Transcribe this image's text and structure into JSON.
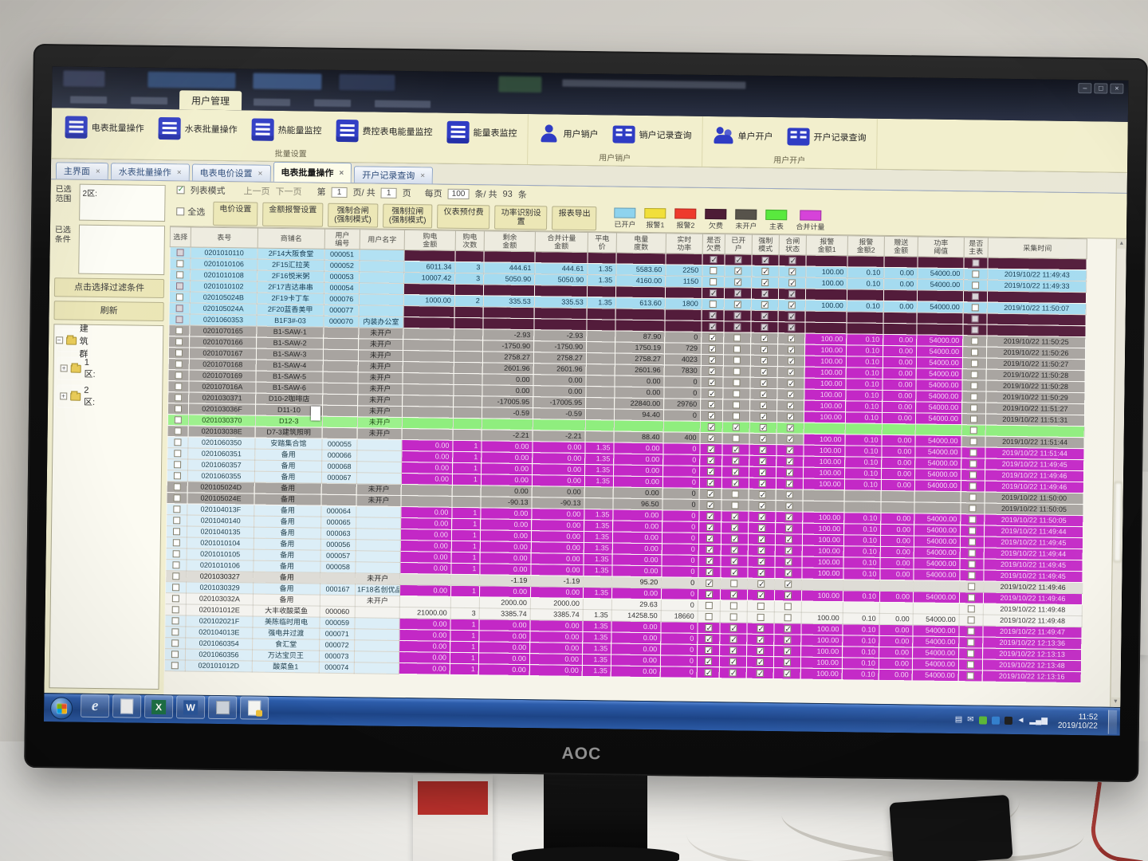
{
  "monitor": {
    "brand": "AOC"
  },
  "chrome": {
    "active_menu": "用户管理",
    "controls": [
      "–",
      "□",
      "×"
    ]
  },
  "ribbon": {
    "groups": [
      {
        "label": "批量设置",
        "buttons": [
          {
            "label": "电表批量操作",
            "icon": "meter"
          },
          {
            "label": "水表批量操作",
            "icon": "meter"
          },
          {
            "label": "热能量监控",
            "icon": "meter"
          },
          {
            "label": "费控表电能量监控",
            "icon": "meter"
          },
          {
            "label": "能量表监控",
            "icon": "meter"
          }
        ]
      },
      {
        "label": "用户销户",
        "buttons": [
          {
            "label": "用户销户",
            "icon": "person"
          },
          {
            "label": "销户记录查询",
            "icon": "card"
          }
        ]
      },
      {
        "label": "用户开户",
        "buttons": [
          {
            "label": "单户开户",
            "icon": "persons"
          },
          {
            "label": "开户记录查询",
            "icon": "card"
          }
        ]
      }
    ]
  },
  "doc_tabs": [
    {
      "label": "主界面",
      "active": false
    },
    {
      "label": "水表批量操作",
      "active": false
    },
    {
      "label": "电表电价设置",
      "active": false
    },
    {
      "label": "电表批量操作",
      "active": true
    },
    {
      "label": "开户记录查询",
      "active": false
    }
  ],
  "pagination": {
    "list_mode": "列表模式",
    "prev": "上一页",
    "next": "下一页",
    "seg1": "第",
    "page": "1",
    "seg2": "页/ 共",
    "pages": "1",
    "seg3": "页",
    "seg4": "每页",
    "per_page": "100",
    "seg5": "条/ 共",
    "total": "93",
    "seg6": "条"
  },
  "toolbar": {
    "select_all": "全选",
    "buttons": [
      "电价设置",
      "金额报警设置",
      "强制合闸\n(强制模式)",
      "强制拉闸\n(强制模式)",
      "仪表预付费",
      "功率识别设\n置",
      "报表导出"
    ]
  },
  "legend": [
    {
      "label": "已开户",
      "color": "#8ed3ee"
    },
    {
      "label": "报警1",
      "color": "#f1df3a"
    },
    {
      "label": "报警2",
      "color": "#ee3a2c"
    },
    {
      "label": "欠费",
      "color": "#4d1c36"
    },
    {
      "label": "未开户",
      "color": "#57534b"
    },
    {
      "label": "主表",
      "color": "#59e93e"
    },
    {
      "label": "合并计量",
      "color": "#d643d9"
    }
  ],
  "sidebar": {
    "range_label": "已选范围",
    "range_value": "2区:",
    "cond_label": "已选条件",
    "cond_value": "",
    "filter_button": "点击选择过滤条件",
    "refresh_button": "刷新",
    "tree": {
      "root": "建筑群",
      "children": [
        "1区:",
        "2区:"
      ]
    }
  },
  "table": {
    "headers": [
      "选择",
      "表号",
      "商铺名",
      "用户\n编号",
      "用户名字",
      "购电\n金额",
      "购电\n次数",
      "剩余\n金额",
      "合并计量\n金额",
      "平电\n价",
      "电量\n度数",
      "实时\n功率",
      "是否\n欠费",
      "已开\n户",
      "强制\n模式",
      "合闸\n状态",
      "报警\n金额1",
      "报警\n金额2",
      "赠送\n金额",
      "功率\n阈值",
      "是否\n主表",
      "采集时间"
    ],
    "check_patterns": {
      "blue": [
        0,
        1,
        1,
        1
      ],
      "dark": [
        1,
        1,
        1,
        1
      ],
      "gray": [
        1,
        0,
        1,
        1
      ],
      "magenta": [
        1,
        1,
        1,
        1
      ],
      "green": [
        1,
        1,
        1,
        1
      ],
      "white": [
        0,
        0,
        0,
        0
      ],
      "sel": [
        1,
        0,
        1,
        1
      ]
    },
    "magenta_defaults": {
      "v": [
        "0.00",
        "1",
        "0.00",
        "0.00",
        "1.35",
        "0.00",
        "0"
      ],
      "a": [
        "100.00",
        "0.10",
        "0.00",
        "54000.00"
      ]
    },
    "rows": [
      {
        "m": "0201010110",
        "s": "2F14大阪食堂",
        "u": "000051",
        "n": "",
        "t": "dark"
      },
      {
        "m": "0201010106",
        "s": "2F15汇拉芙",
        "u": "000052",
        "n": "",
        "t": "blue",
        "v": [
          "6011.34",
          "3",
          "444.61",
          "444.61",
          "1.35",
          "5583.60",
          "2250"
        ],
        "a": [
          "100.00",
          "0.10",
          "0.00",
          "54000.00"
        ],
        "time": "2019/10/22 11:49:43"
      },
      {
        "m": "0201010108",
        "s": "2F16悦米粥",
        "u": "000053",
        "n": "",
        "t": "blue",
        "v": [
          "10007.42",
          "3",
          "5050.90",
          "5050.90",
          "1.35",
          "4160.00",
          "1150"
        ],
        "a": [
          "100.00",
          "0.10",
          "0.00",
          "54000.00"
        ],
        "time": "2019/10/22 11:49:33"
      },
      {
        "m": "0201010102",
        "s": "2F17吉达串串",
        "u": "000054",
        "n": "",
        "t": "dark"
      },
      {
        "m": "020105024B",
        "s": "2F19卡丁车",
        "u": "000076",
        "n": "",
        "t": "blue",
        "v": [
          "1000.00",
          "2",
          "335.53",
          "335.53",
          "1.35",
          "613.60",
          "1800"
        ],
        "a": [
          "100.00",
          "0.10",
          "0.00",
          "54000.00"
        ],
        "time": "2019/10/22 11:50:07"
      },
      {
        "m": "020105024A",
        "s": "2F20蓝香美甲",
        "u": "000077",
        "n": "",
        "t": "dark"
      },
      {
        "m": "0201060353",
        "s": "B1F3#-03",
        "u": "000070",
        "n": "内装办公室",
        "t": "dark"
      },
      {
        "m": "0201070165",
        "s": "B1-SAW-1",
        "u": "",
        "n": "未开户",
        "t": "gray",
        "am": true,
        "v": [
          "",
          "",
          "-2.93",
          "-2.93",
          "",
          "87.90",
          "0"
        ],
        "time": "2019/10/22 11:50:25"
      },
      {
        "m": "0201070166",
        "s": "B1-SAW-2",
        "u": "",
        "n": "未开户",
        "t": "gray",
        "am": true,
        "v": [
          "",
          "",
          "-1750.90",
          "-1750.90",
          "",
          "1750.19",
          "729"
        ],
        "time": "2019/10/22 11:50:26"
      },
      {
        "m": "0201070167",
        "s": "B1-SAW-3",
        "u": "",
        "n": "未开户",
        "t": "gray",
        "am": true,
        "v": [
          "",
          "",
          "2758.27",
          "2758.27",
          "",
          "2758.27",
          "4023"
        ],
        "time": "2019/10/22 11:50:27"
      },
      {
        "m": "0201070168",
        "s": "B1-SAW-4",
        "u": "",
        "n": "未开户",
        "t": "gray",
        "am": true,
        "v": [
          "",
          "",
          "2601.96",
          "2601.96",
          "",
          "2601.96",
          "7830"
        ],
        "time": "2019/10/22 11:50:28"
      },
      {
        "m": "0201070169",
        "s": "B1-SAW-5",
        "u": "",
        "n": "未开户",
        "t": "gray",
        "am": true,
        "v": [
          "",
          "",
          "0.00",
          "0.00",
          "",
          "0.00",
          "0"
        ],
        "time": "2019/10/22 11:50:28"
      },
      {
        "m": "020107016A",
        "s": "B1-SAW-6",
        "u": "",
        "n": "未开户",
        "t": "gray",
        "am": true,
        "v": [
          "",
          "",
          "0.00",
          "0.00",
          "",
          "0.00",
          "0"
        ],
        "time": "2019/10/22 11:50:29"
      },
      {
        "m": "0201030371",
        "s": "D10-2咖啡店",
        "u": "",
        "n": "未开户",
        "t": "gray",
        "am": true,
        "v": [
          "",
          "",
          "-17005.95",
          "-17005.95",
          "",
          "22840.00",
          "29760"
        ],
        "time": "2019/10/22 11:51:27"
      },
      {
        "m": "020103036F",
        "s": "D11-10",
        "u": "",
        "n": "未开户",
        "t": "gray",
        "am": true,
        "v": [
          "",
          "",
          "-0.59",
          "-0.59",
          "",
          "94.40",
          "0"
        ],
        "time": "2019/10/22 11:51:31"
      },
      {
        "m": "0201030370",
        "s": "D12-3",
        "u": "",
        "n": "未开户",
        "t": "green"
      },
      {
        "m": "020103038E",
        "s": "D7-3建筑照明",
        "u": "",
        "n": "未开户",
        "t": "gray",
        "am": true,
        "v": [
          "",
          "",
          "-2.21",
          "-2.21",
          "",
          "88.40",
          "400"
        ],
        "time": "2019/10/22 11:51:44"
      },
      {
        "m": "0201060350",
        "s": "安踏集合馆",
        "u": "000055",
        "n": "",
        "t": "magenta",
        "time": "2019/10/22 11:51:44"
      },
      {
        "m": "0201060351",
        "s": "备用",
        "u": "000066",
        "n": "",
        "t": "magenta",
        "time": "2019/10/22 11:49:45"
      },
      {
        "m": "0201060357",
        "s": "备用",
        "u": "000068",
        "n": "",
        "t": "magenta",
        "time": "2019/10/22 11:49:46"
      },
      {
        "m": "0201060355",
        "s": "备用",
        "u": "000067",
        "n": "",
        "t": "magenta",
        "time": "2019/10/22 11:49:46"
      },
      {
        "m": "020105024D",
        "s": "备用",
        "u": "",
        "n": "未开户",
        "t": "gray",
        "v": [
          "",
          "",
          "0.00",
          "0.00",
          "",
          "0.00",
          "0"
        ],
        "time": "2019/10/22 11:50:00"
      },
      {
        "m": "020105024E",
        "s": "备用",
        "u": "",
        "n": "未开户",
        "t": "gray",
        "v": [
          "",
          "",
          "-90.13",
          "-90.13",
          "",
          "96.50",
          "0"
        ],
        "time": "2019/10/22 11:50:05"
      },
      {
        "m": "020104013F",
        "s": "备用",
        "u": "000064",
        "n": "",
        "t": "magenta",
        "time": "2019/10/22 11:50:05"
      },
      {
        "m": "0201040140",
        "s": "备用",
        "u": "000065",
        "n": "",
        "t": "magenta",
        "time": "2019/10/22 11:49:44"
      },
      {
        "m": "0201040135",
        "s": "备用",
        "u": "000063",
        "n": "",
        "t": "magenta",
        "time": "2019/10/22 11:49:45"
      },
      {
        "m": "0201010104",
        "s": "备用",
        "u": "000056",
        "n": "",
        "t": "magenta",
        "time": "2019/10/22 11:49:44"
      },
      {
        "m": "0201010105",
        "s": "备用",
        "u": "000057",
        "n": "",
        "t": "magenta",
        "time": "2019/10/22 11:49:45"
      },
      {
        "m": "0201010106",
        "s": "备用",
        "u": "000058",
        "n": "",
        "t": "magenta",
        "time": "2019/10/22 11:49:45"
      },
      {
        "m": "0201030327",
        "s": "备用",
        "u": "",
        "n": "未开户",
        "t": "sel",
        "v": [
          "",
          "",
          "-1.19",
          "-1.19",
          "",
          "95.20",
          "0"
        ],
        "time": "2019/10/22 11:49:46"
      },
      {
        "m": "0201030329",
        "s": "备用",
        "u": "000167",
        "n": "1F18名创优品",
        "t": "magenta",
        "time": "2019/10/22 11:49:46"
      },
      {
        "m": "020103032A",
        "s": "备用",
        "u": "",
        "n": "未开户",
        "t": "white",
        "v": [
          "",
          "",
          "2000.00",
          "2000.00",
          "",
          "29.63",
          "0"
        ],
        "time": "2019/10/22 11:49:48"
      },
      {
        "m": "020101012E",
        "s": "大丰收酸菜鱼",
        "u": "000060",
        "n": "",
        "t": "white",
        "v": [
          "21000.00",
          "3",
          "3385.74",
          "3385.74",
          "1.35",
          "14258.50",
          "18660"
        ],
        "a": [
          "100.00",
          "0.10",
          "0.00",
          "54000.00"
        ],
        "time": "2019/10/22 11:49:48"
      },
      {
        "m": "020102021F",
        "s": "美陈临时用电",
        "u": "000059",
        "n": "",
        "t": "magenta",
        "time": "2019/10/22 11:49:47"
      },
      {
        "m": "020104013E",
        "s": "强电井过渡",
        "u": "000071",
        "n": "",
        "t": "magenta",
        "time": "2019/10/22 12:13:36"
      },
      {
        "m": "0201060354",
        "s": "食汇堂",
        "u": "000072",
        "n": "",
        "t": "magenta",
        "time": "2019/10/22 12:13:13"
      },
      {
        "m": "0201060356",
        "s": "万达宝贝王",
        "u": "000073",
        "n": "",
        "t": "magenta",
        "time": "2019/10/22 12:13:48"
      },
      {
        "m": "020101012D",
        "s": "酸菜鱼1",
        "u": "000074",
        "n": "",
        "t": "magenta",
        "time": "2019/10/22 12:13:16"
      }
    ]
  },
  "taskbar": {
    "icons": [
      "ie",
      "sheet",
      "excel",
      "word",
      "grayapp",
      "pinned"
    ],
    "tray_icons": [
      "printer",
      "mail",
      "shield",
      "screen",
      "pointer",
      "audio",
      "signal"
    ],
    "time": "11:52",
    "date": "2019/10/22"
  }
}
